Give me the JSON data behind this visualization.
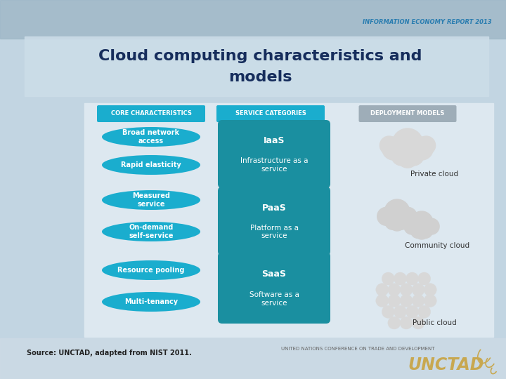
{
  "title_line1": "Cloud computing characteristics and",
  "title_line2": "models",
  "header_report": "INFORMATION ECONOMY REPORT 2013",
  "title_color": "#1a3a6b",
  "col_headers": [
    "CORE CHARACTERISTICS",
    "SERVICE CATEGORIES",
    "DEPLOYMENT MODELS"
  ],
  "col_header_colors": [
    "#1aadce",
    "#1aadce",
    "#9eadb8"
  ],
  "core_items": [
    "Broad network\naccess",
    "Rapid elasticity",
    "Measured\nservice",
    "On-demand\nself-service",
    "Resource pooling",
    "Multi-tenancy"
  ],
  "service_items": [
    {
      "title": "IaaS",
      "subtitle": "Infrastructure as a\nservice"
    },
    {
      "title": "PaaS",
      "subtitle": "Platform as a\nservice"
    },
    {
      "title": "SaaS",
      "subtitle": "Software as a\nservice"
    }
  ],
  "deployment_items": [
    "Private cloud",
    "Community cloud",
    "Public cloud"
  ],
  "ellipse_color": "#1aadce",
  "service_box_color": "#1a8fa0",
  "cloud_color": "#d8d8d8",
  "cloud_color_public": "#e0e0e0",
  "source_text": "Source: UNCTAD, adapted from NIST 2011.",
  "unctad_text": "UNITED NATIONS CONFERENCE ON TRADE AND DEVELOPMENT",
  "unctad_logo": "UNCTAD",
  "unctad_color": "#c8a850"
}
